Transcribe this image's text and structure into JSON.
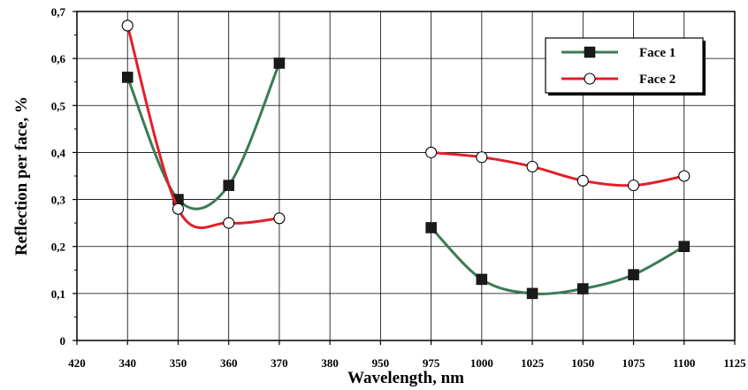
{
  "chart_data": {
    "type": "line",
    "title": "",
    "xlabel": "Wavelength, nm",
    "ylabel": "Reflection per face, %",
    "x_tick_labels": [
      "420",
      "340",
      "350",
      "360",
      "370",
      "380",
      "950",
      "975",
      "1000",
      "1025",
      "1050",
      "1075",
      "1100",
      "1125"
    ],
    "y_tick_labels": [
      "0",
      "0,1",
      "0,2",
      "0,3",
      "0,4",
      "0,5",
      "0,6",
      "0,7"
    ],
    "ylim": [
      0,
      0.7
    ],
    "grid": true,
    "legend_position": "top-right",
    "series": [
      {
        "name": "Face 1",
        "marker": "filled-square",
        "color": "#3c7a55",
        "x": [
          "340",
          "350",
          "360",
          "370",
          "975",
          "1000",
          "1025",
          "1050",
          "1075",
          "1100"
        ],
        "values": [
          0.56,
          0.3,
          0.33,
          0.59,
          0.24,
          0.13,
          0.1,
          0.11,
          0.14,
          0.2
        ]
      },
      {
        "name": "Face 2",
        "marker": "open-circle",
        "color": "#e0202a",
        "x": [
          "340",
          "350",
          "360",
          "370",
          "975",
          "1000",
          "1025",
          "1050",
          "1075",
          "1100"
        ],
        "values": [
          0.67,
          0.28,
          0.25,
          0.26,
          0.4,
          0.39,
          0.37,
          0.34,
          0.33,
          0.35
        ]
      }
    ]
  }
}
